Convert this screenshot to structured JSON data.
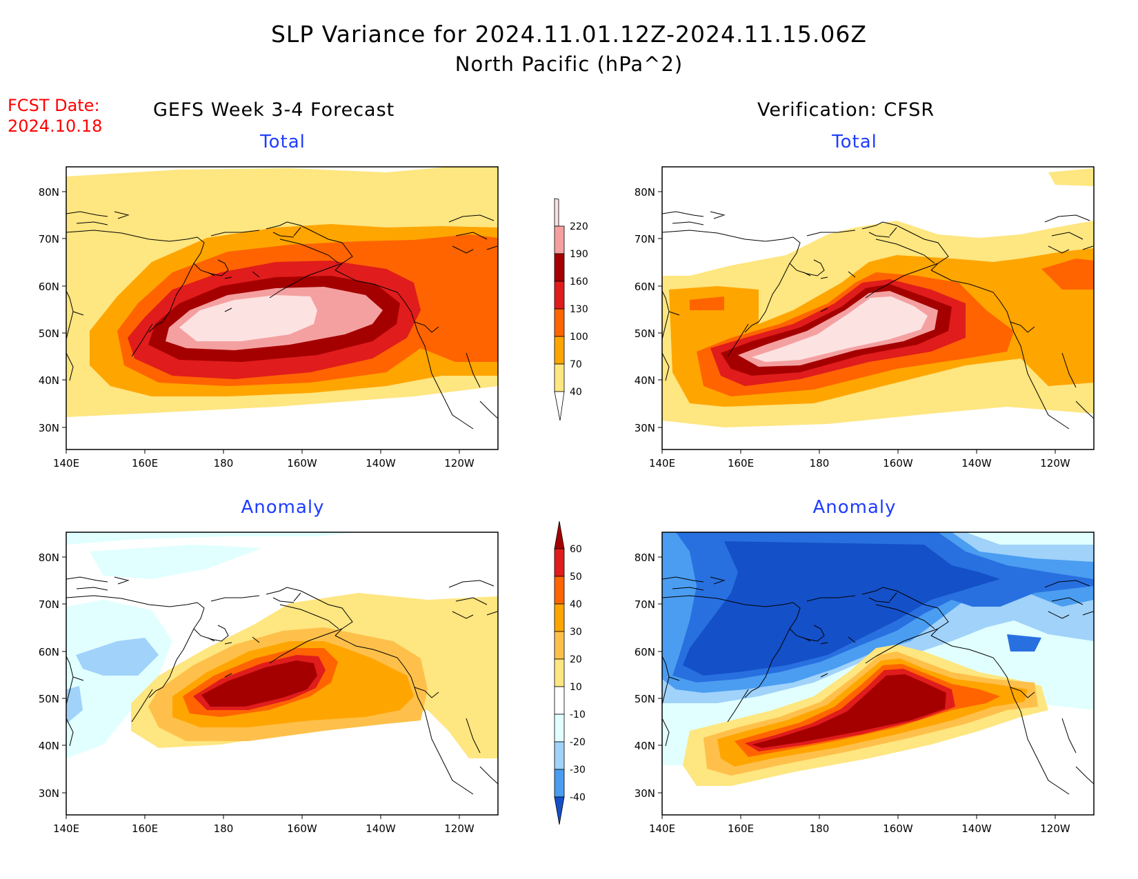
{
  "title": {
    "line1": "SLP Variance for 2024.11.01.12Z-2024.11.15.06Z",
    "line2": "North Pacific (hPa^2)"
  },
  "forecast_date": {
    "label": "FCST Date:",
    "value": "2024.10.18"
  },
  "columns": {
    "left": "GEFS Week 3-4 Forecast",
    "right": "Verification: CFSR"
  },
  "panels": {
    "top_left": "Total",
    "top_right": "Total",
    "bottom_left": "Anomaly",
    "bottom_right": "Anomaly"
  },
  "axes": {
    "lat_labels": [
      "80N",
      "70N",
      "60N",
      "50N",
      "40N",
      "30N"
    ],
    "lon_labels": [
      "140E",
      "160E",
      "180",
      "160W",
      "140W",
      "120W"
    ]
  },
  "colorbars": {
    "total": {
      "levels": [
        "40",
        "70",
        "100",
        "130",
        "160",
        "190",
        "220"
      ],
      "colors": [
        "#fee680",
        "#ffa500",
        "#ff6400",
        "#e01c1c",
        "#a50000",
        "#f4a0a0",
        "#fde2e2"
      ]
    },
    "anomaly": {
      "levels": [
        "60",
        "50",
        "40",
        "30",
        "20",
        "10",
        "-10",
        "-20",
        "-30",
        "-40"
      ],
      "colors": [
        "#a50000",
        "#e01c1c",
        "#ff6400",
        "#ffa500",
        "#fec04a",
        "#fee680",
        "#ffffff",
        "#e1ffff",
        "#a0d2fa",
        "#4a9df0",
        "#2870e0",
        "#1450c8"
      ]
    }
  },
  "colors": {
    "panel_title": "#1e3cff",
    "forecast_date": "#ff0000"
  }
}
